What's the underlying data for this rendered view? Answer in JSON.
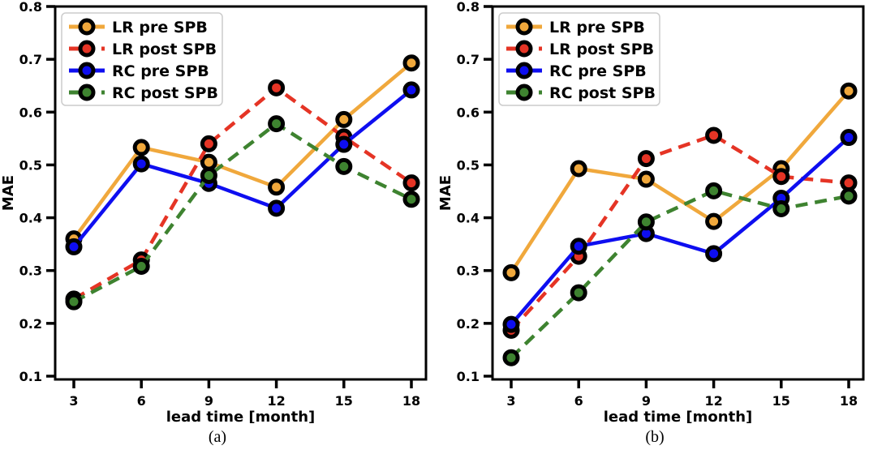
{
  "figure": {
    "background": "#ffffff",
    "text_color": "#000000",
    "axis_color": "#000000"
  },
  "chart_data": [
    {
      "id": "a",
      "type": "line",
      "caption": "(a)",
      "xlabel": "lead time [month]",
      "ylabel": "MAE",
      "x": [
        3,
        6,
        9,
        12,
        15,
        18
      ],
      "xticks": [
        3,
        6,
        9,
        12,
        15,
        18
      ],
      "yticks": [
        0.1,
        0.2,
        0.3,
        0.4,
        0.5,
        0.6,
        0.7,
        0.8
      ],
      "xlim": [
        2.2,
        18.7
      ],
      "ylim": [
        0.09,
        0.8
      ],
      "grid": false,
      "legend_position": "upper-left",
      "series": [
        {
          "name": "LR pre SPB",
          "color": "#F0A83C",
          "dash": "solid",
          "values": [
            0.36,
            0.533,
            0.505,
            0.458,
            0.586,
            0.693
          ]
        },
        {
          "name": "LR post SPB",
          "color": "#E53425",
          "dash": "dashed",
          "values": [
            0.246,
            0.32,
            0.54,
            0.646,
            0.553,
            0.466
          ]
        },
        {
          "name": "RC pre SPB",
          "color": "#0E0EF0",
          "dash": "solid",
          "values": [
            0.345,
            0.502,
            0.465,
            0.418,
            0.539,
            0.642
          ]
        },
        {
          "name": "RC post SPB",
          "color": "#3E8330",
          "dash": "dashed",
          "values": [
            0.241,
            0.308,
            0.48,
            0.578,
            0.497,
            0.435
          ]
        }
      ]
    },
    {
      "id": "b",
      "type": "line",
      "caption": "(b)",
      "xlabel": "lead time [month]",
      "ylabel": "MAE",
      "x": [
        3,
        6,
        9,
        12,
        15,
        18
      ],
      "xticks": [
        3,
        6,
        9,
        12,
        15,
        18
      ],
      "yticks": [
        0.1,
        0.2,
        0.3,
        0.4,
        0.5,
        0.6,
        0.7,
        0.8
      ],
      "xlim": [
        2.2,
        18.7
      ],
      "ylim": [
        0.09,
        0.8
      ],
      "grid": false,
      "legend_position": "upper-left",
      "series": [
        {
          "name": "LR pre SPB",
          "color": "#F0A83C",
          "dash": "solid",
          "values": [
            0.296,
            0.493,
            0.473,
            0.393,
            0.493,
            0.64
          ]
        },
        {
          "name": "LR post SPB",
          "color": "#E53425",
          "dash": "dashed",
          "values": [
            0.187,
            0.327,
            0.512,
            0.556,
            0.478,
            0.466
          ]
        },
        {
          "name": "RC pre SPB",
          "color": "#0E0EF0",
          "dash": "solid",
          "values": [
            0.198,
            0.346,
            0.37,
            0.332,
            0.437,
            0.552
          ]
        },
        {
          "name": "RC post SPB",
          "color": "#3E8330",
          "dash": "dashed",
          "values": [
            0.135,
            0.258,
            0.392,
            0.451,
            0.417,
            0.441
          ]
        }
      ]
    }
  ]
}
